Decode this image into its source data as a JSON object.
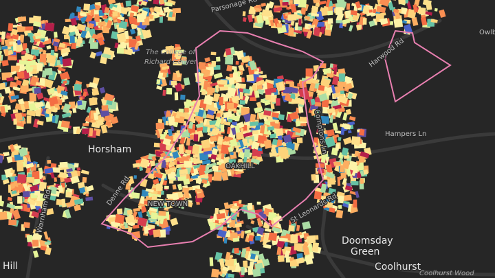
{
  "map": {
    "labels": {
      "town": "Horsham",
      "college_line1": "The College of",
      "college_line2": "Richard Collyer",
      "parsonage": "Parsonage Rd",
      "hampers": "Hampers Ln",
      "harwood": "Harwood Rd",
      "doomsday_line1": "Doomsday",
      "doomsday_line2": "Green",
      "coolhurst": "Coolhurst",
      "coolhurst_wood": "Coolhurst Wood",
      "owlbeech": "Owlb",
      "hill": "Hill",
      "oakhill": "OAKHILL",
      "newtown": "NEW TOWN",
      "comptons": "Comptons Ln",
      "st_leonards": "St Leonards Rd",
      "warnham": "Warnham Rd",
      "denne": "Denne Rd"
    }
  }
}
